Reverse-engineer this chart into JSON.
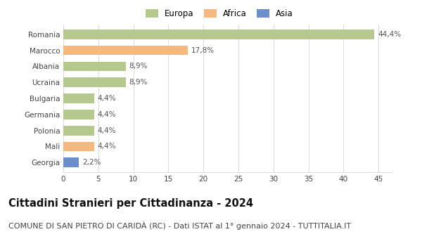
{
  "categories": [
    "Georgia",
    "Mali",
    "Polonia",
    "Germania",
    "Bulgaria",
    "Ucraina",
    "Albania",
    "Marocco",
    "Romania"
  ],
  "values": [
    2.2,
    4.4,
    4.4,
    4.4,
    4.4,
    8.9,
    8.9,
    17.8,
    44.4
  ],
  "labels": [
    "2,2%",
    "4,4%",
    "4,4%",
    "4,4%",
    "4,4%",
    "8,9%",
    "8,9%",
    "17,8%",
    "44,4%"
  ],
  "colors": [
    "#6a8fca",
    "#f5b97f",
    "#b5c98e",
    "#b5c98e",
    "#b5c98e",
    "#b5c98e",
    "#b5c98e",
    "#f5b97f",
    "#b5c98e"
  ],
  "legend_labels": [
    "Europa",
    "Africa",
    "Asia"
  ],
  "legend_colors": [
    "#b5c98e",
    "#f5b97f",
    "#6a8fca"
  ],
  "title": "Cittadini Stranieri per Cittadinanza - 2024",
  "subtitle": "COMUNE DI SAN PIETRO DI CARIDÀ (RC) - Dati ISTAT al 1° gennaio 2024 - TUTTITALIA.IT",
  "xlim": [
    0,
    47
  ],
  "xticks": [
    0,
    5,
    10,
    15,
    20,
    25,
    30,
    35,
    40,
    45
  ],
  "background_color": "#ffffff",
  "grid_color": "#dddddd",
  "title_fontsize": 10.5,
  "subtitle_fontsize": 8,
  "label_fontsize": 7.5,
  "tick_fontsize": 7.5,
  "legend_fontsize": 8.5
}
